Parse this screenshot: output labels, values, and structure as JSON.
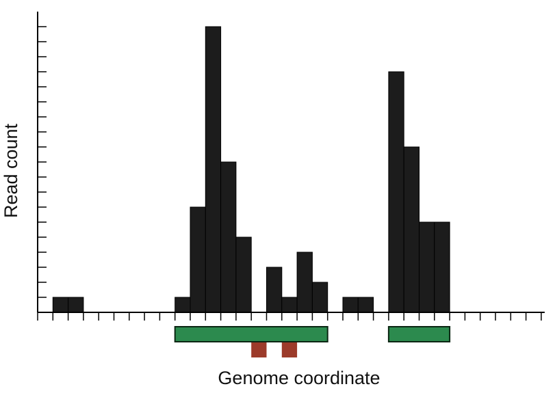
{
  "chart_data": {
    "type": "bar",
    "title": "",
    "xlabel": "Genome coordinate",
    "ylabel": "Read count",
    "x_bins": 33,
    "values": [
      0,
      1,
      1,
      0,
      0,
      0,
      0,
      0,
      0,
      1,
      7,
      19,
      10,
      5,
      0,
      3,
      1,
      4,
      2,
      0,
      1,
      1,
      0,
      16,
      11,
      6,
      6,
      0,
      0,
      0,
      0,
      0,
      0
    ],
    "ylim": [
      0,
      19
    ],
    "y_ticks": 20,
    "grid": false,
    "legend": "none",
    "annotations": {
      "genes": [
        {
          "start_bin": 9,
          "end_bin": 19
        },
        {
          "start_bin": 23,
          "end_bin": 27
        }
      ],
      "features": [
        {
          "start_bin": 14,
          "end_bin": 15
        },
        {
          "start_bin": 16,
          "end_bin": 17
        }
      ]
    },
    "colors": {
      "bar": "#1c1c1c",
      "bar_stroke": "#000000",
      "gene": "#2c8a4e",
      "gene_stroke": "#0b2613",
      "feature": "#9c3b2a",
      "axis": "#000000"
    }
  }
}
